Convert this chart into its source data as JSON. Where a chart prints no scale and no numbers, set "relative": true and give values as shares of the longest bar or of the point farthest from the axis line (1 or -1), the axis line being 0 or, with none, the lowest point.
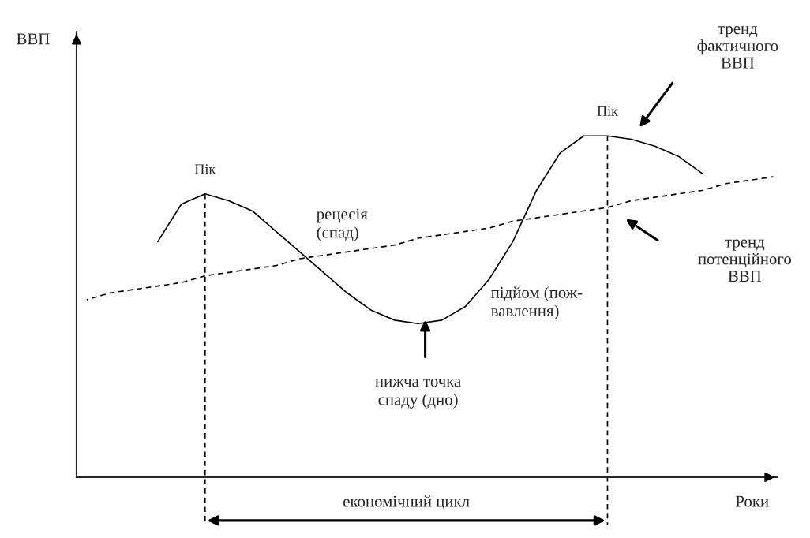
{
  "chart_data": {
    "type": "line",
    "relative": true,
    "xlabel": "Роки",
    "legend": false,
    "categories": [
      null,
      null,
      null,
      null,
      null,
      null,
      null,
      null,
      null,
      null,
      null,
      null,
      null,
      null,
      null,
      null,
      null,
      null,
      null,
      null,
      null,
      null,
      null,
      null,
      null,
      null,
      null,
      null,
      null,
      null
    ],
    "series": [
      {
        "color": "#000000",
        "line_style": "solid",
        "values": [
          null,
          null,
          null,
          0.69,
          0.8,
          0.83,
          0.81,
          0.78,
          0.72,
          0.66,
          0.6,
          0.54,
          0.49,
          0.46,
          0.45,
          0.46,
          0.5,
          0.58,
          0.69,
          0.84,
          0.95,
          1.0,
          1.0,
          0.99,
          0.97,
          0.94,
          0.89,
          null,
          null,
          null
        ]
      },
      {
        "color": "#000000",
        "line_style": "dashed",
        "values": [
          0.52,
          0.54,
          0.55,
          0.56,
          0.57,
          0.59,
          0.6,
          0.61,
          0.62,
          0.64,
          0.65,
          0.66,
          0.67,
          0.68,
          0.7,
          0.71,
          0.72,
          0.73,
          0.75,
          0.76,
          0.77,
          0.78,
          0.79,
          0.81,
          0.82,
          0.83,
          0.84,
          0.86,
          0.87,
          0.88
        ]
      }
    ],
    "annotations": [
      "ВВП",
      "тренд\nфактичного\nВВП",
      "тренд\nпотенційного\nВВП",
      "рецесія\n(спад)",
      "нижча точка\nспаду (дно)",
      "підйом (пож-\nвавлення)",
      "економічний цикл",
      "Пік",
      "Пік"
    ]
  }
}
